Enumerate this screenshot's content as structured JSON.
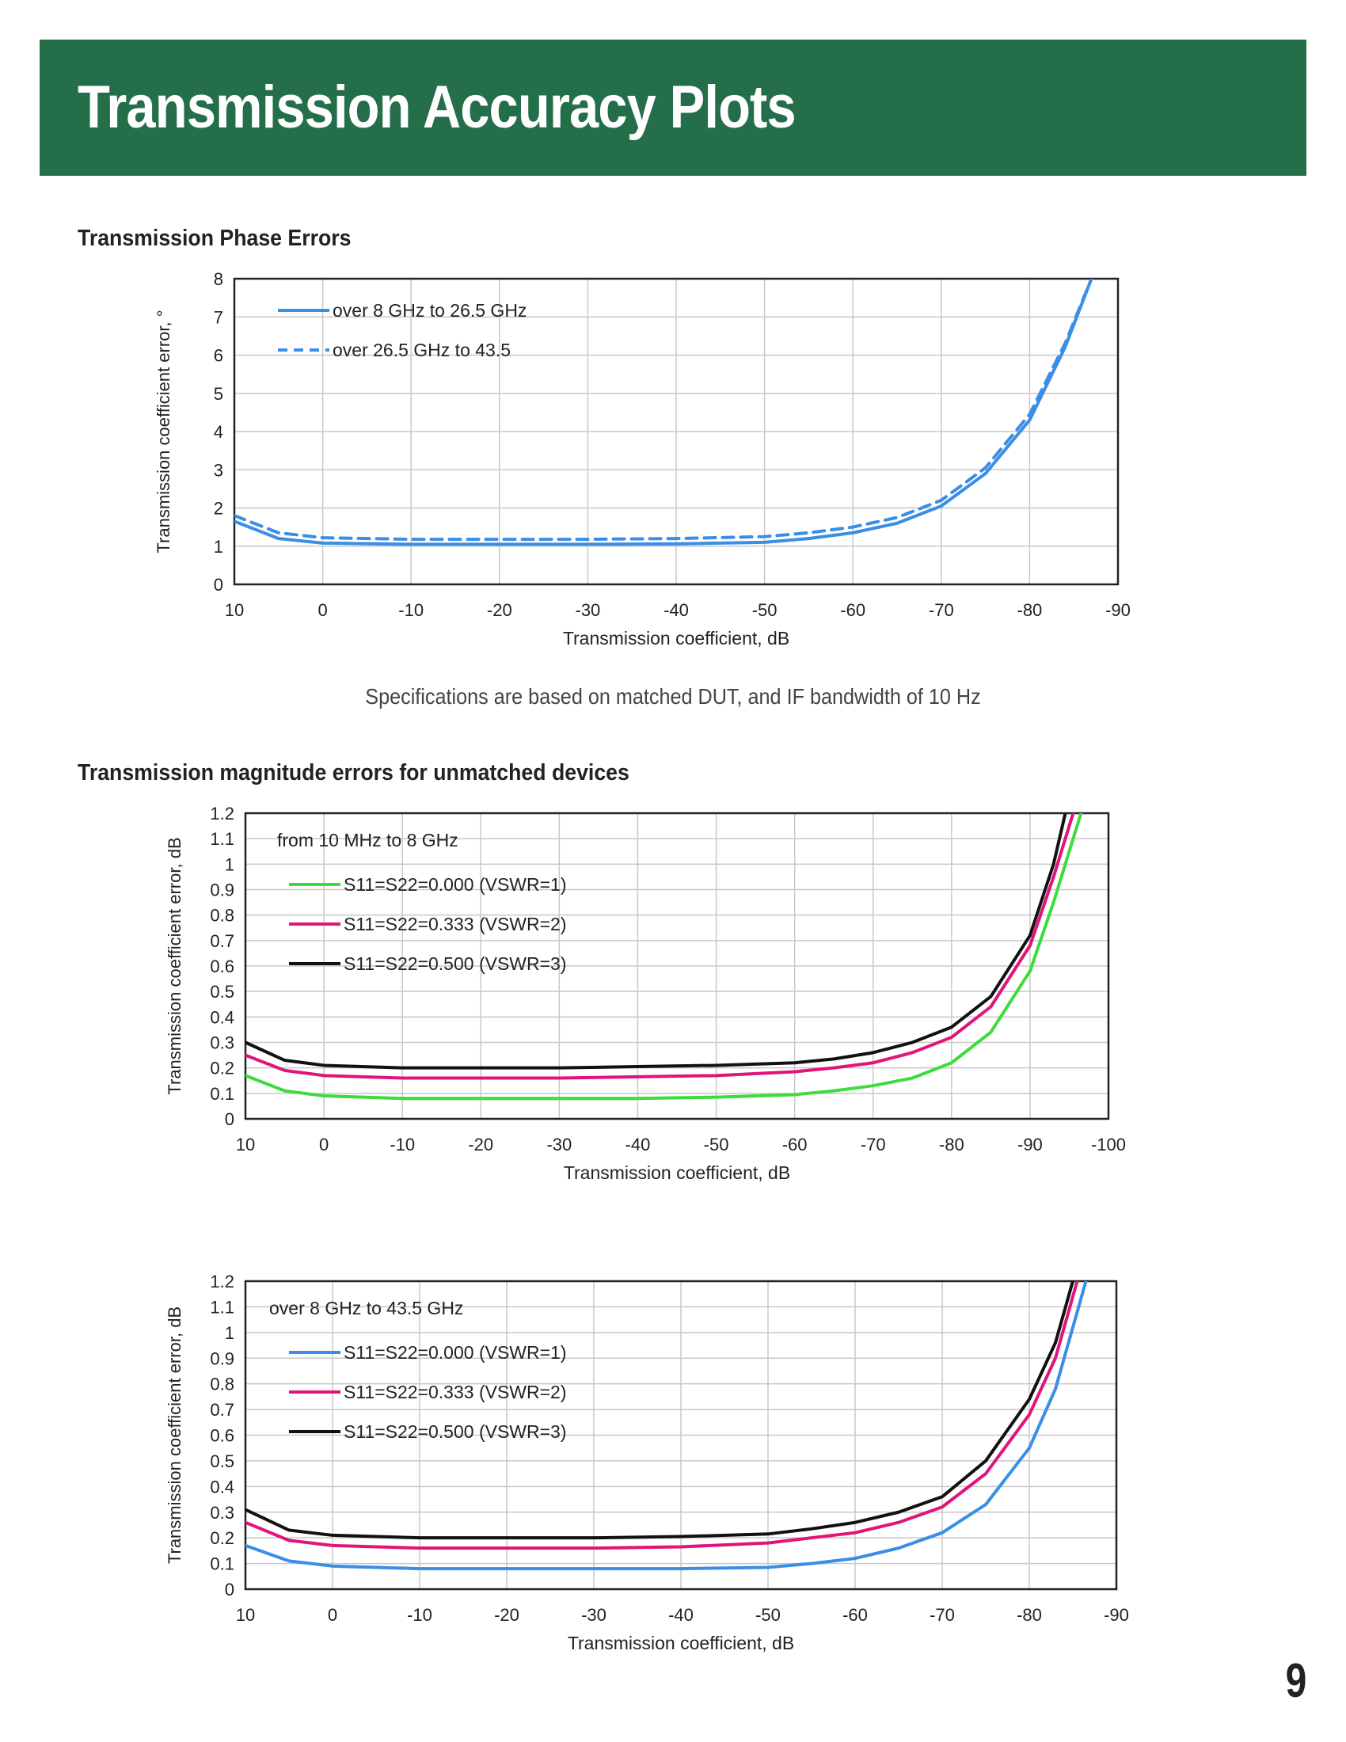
{
  "banner": {
    "title": "Transmission Accuracy Plots"
  },
  "sections": {
    "phase_heading": "Transmission Phase Errors",
    "magnitude_heading": "Transmission magnitude errors for unmatched devices"
  },
  "note": "Specifications are based on matched DUT, and IF bandwidth of 10 Hz",
  "page_number": "9",
  "chart_data": [
    {
      "type": "line",
      "ylabel": "Transmission coefficient error, °",
      "xlabel": "Transmission coefficient, dB",
      "xlim": [
        10,
        -90
      ],
      "ylim": [
        0,
        8
      ],
      "xticks": [
        10,
        0,
        -10,
        -20,
        -30,
        -40,
        -50,
        -60,
        -70,
        -80,
        -90
      ],
      "yticks": [
        0,
        1,
        2,
        3,
        4,
        5,
        6,
        7,
        8
      ],
      "ytick_labels": [
        "0",
        "1",
        "2",
        "3",
        "4",
        "5",
        "6",
        "7",
        "8"
      ],
      "grid": true,
      "legend_title": "",
      "legend_position": "top-left",
      "series": [
        {
          "name": "over 8 GHz to 26.5 GHz",
          "color": "#3a8ee6",
          "style": "solid",
          "x": [
            10,
            5,
            0,
            -10,
            -20,
            -30,
            -40,
            -50,
            -55,
            -60,
            -65,
            -70,
            -75,
            -80,
            -84,
            -87
          ],
          "y": [
            1.65,
            1.2,
            1.08,
            1.05,
            1.05,
            1.05,
            1.06,
            1.1,
            1.2,
            1.35,
            1.6,
            2.05,
            2.9,
            4.3,
            6.2,
            8.0
          ]
        },
        {
          "name": "over 26.5 GHz to 43.5",
          "color": "#3a8ee6",
          "style": "dashed",
          "x": [
            10,
            5,
            0,
            -10,
            -20,
            -30,
            -40,
            -50,
            -55,
            -60,
            -65,
            -70,
            -75,
            -80,
            -84,
            -87
          ],
          "y": [
            1.8,
            1.35,
            1.22,
            1.18,
            1.18,
            1.18,
            1.2,
            1.25,
            1.35,
            1.5,
            1.75,
            2.2,
            3.05,
            4.45,
            6.3,
            8.0
          ]
        }
      ]
    },
    {
      "type": "line",
      "ylabel": "Transmission coefficient error, dB",
      "xlabel": "Transmission coefficient, dB",
      "xlim": [
        10,
        -100
      ],
      "ylim": [
        0,
        1.2
      ],
      "xticks": [
        10,
        0,
        -10,
        -20,
        -30,
        -40,
        -50,
        -60,
        -70,
        -80,
        -90,
        -100
      ],
      "yticks": [
        0,
        0.1,
        0.2,
        0.3,
        0.4,
        0.5,
        0.6,
        0.7,
        0.8,
        0.9,
        1.0,
        1.1,
        1.2
      ],
      "ytick_labels": [
        "0",
        "0.1",
        "0.2",
        "0.3",
        "0.4",
        "0.5",
        "0.6",
        "0.7",
        "0.8",
        "0.9",
        "1",
        "1.1",
        "1.2"
      ],
      "grid": true,
      "legend_title": "from 10 MHz to 8 GHz",
      "legend_position": "top-left",
      "series": [
        {
          "name": "S11=S22=0.000 (VSWR=1)",
          "color": "#3ddc3d",
          "style": "solid",
          "x": [
            10,
            5,
            0,
            -10,
            -20,
            -30,
            -40,
            -50,
            -60,
            -65,
            -70,
            -75,
            -80,
            -85,
            -90,
            -93,
            -96.5
          ],
          "y": [
            0.17,
            0.11,
            0.09,
            0.08,
            0.08,
            0.08,
            0.08,
            0.085,
            0.095,
            0.11,
            0.13,
            0.16,
            0.22,
            0.34,
            0.58,
            0.85,
            1.2
          ]
        },
        {
          "name": "S11=S22=0.333 (VSWR=2)",
          "color": "#e0147a",
          "style": "solid",
          "x": [
            10,
            5,
            0,
            -10,
            -20,
            -30,
            -40,
            -50,
            -60,
            -65,
            -70,
            -75,
            -80,
            -85,
            -90,
            -93,
            -95.5
          ],
          "y": [
            0.25,
            0.19,
            0.17,
            0.16,
            0.16,
            0.16,
            0.165,
            0.17,
            0.185,
            0.2,
            0.22,
            0.26,
            0.32,
            0.44,
            0.68,
            0.95,
            1.2
          ]
        },
        {
          "name": "S11=S22=0.500 (VSWR=3)",
          "color": "#111111",
          "style": "solid",
          "x": [
            10,
            5,
            0,
            -10,
            -20,
            -30,
            -40,
            -50,
            -60,
            -65,
            -70,
            -75,
            -80,
            -85,
            -90,
            -93,
            -94.5
          ],
          "y": [
            0.3,
            0.23,
            0.21,
            0.2,
            0.2,
            0.2,
            0.205,
            0.21,
            0.22,
            0.235,
            0.26,
            0.3,
            0.36,
            0.48,
            0.72,
            1.0,
            1.2
          ]
        }
      ]
    },
    {
      "type": "line",
      "ylabel": "Transmission coefficient error, dB",
      "xlabel": "Transmission coefficient, dB",
      "xlim": [
        10,
        -90
      ],
      "ylim": [
        0,
        1.2
      ],
      "xticks": [
        10,
        0,
        -10,
        -20,
        -30,
        -40,
        -50,
        -60,
        -70,
        -80,
        -90
      ],
      "yticks": [
        0,
        0.1,
        0.2,
        0.3,
        0.4,
        0.5,
        0.6,
        0.7,
        0.8,
        0.9,
        1.0,
        1.1,
        1.2
      ],
      "ytick_labels": [
        "0",
        "0.1",
        "0.2",
        "0.3",
        "0.4",
        "0.5",
        "0.6",
        "0.7",
        "0.8",
        "0.9",
        "1",
        "1.1",
        "1.2"
      ],
      "grid": true,
      "legend_title": "over 8 GHz to 43.5 GHz",
      "legend_position": "top-left",
      "series": [
        {
          "name": "S11=S22=0.000 (VSWR=1)",
          "color": "#3a8ee6",
          "style": "solid",
          "x": [
            10,
            5,
            0,
            -10,
            -20,
            -30,
            -40,
            -50,
            -55,
            -60,
            -65,
            -70,
            -75,
            -80,
            -83,
            -86.5
          ],
          "y": [
            0.17,
            0.11,
            0.09,
            0.08,
            0.08,
            0.08,
            0.08,
            0.085,
            0.1,
            0.12,
            0.16,
            0.22,
            0.33,
            0.55,
            0.78,
            1.2
          ]
        },
        {
          "name": "S11=S22=0.333 (VSWR=2)",
          "color": "#e0147a",
          "style": "solid",
          "x": [
            10,
            5,
            0,
            -10,
            -20,
            -30,
            -40,
            -50,
            -55,
            -60,
            -65,
            -70,
            -75,
            -80,
            -83,
            -85.5
          ],
          "y": [
            0.26,
            0.19,
            0.17,
            0.16,
            0.16,
            0.16,
            0.165,
            0.18,
            0.2,
            0.22,
            0.26,
            0.32,
            0.45,
            0.68,
            0.9,
            1.2
          ]
        },
        {
          "name": "S11=S22=0.500 (VSWR=3)",
          "color": "#111111",
          "style": "solid",
          "x": [
            10,
            5,
            0,
            -10,
            -20,
            -30,
            -40,
            -50,
            -55,
            -60,
            -65,
            -70,
            -75,
            -80,
            -83,
            -85
          ],
          "y": [
            0.31,
            0.23,
            0.21,
            0.2,
            0.2,
            0.2,
            0.205,
            0.215,
            0.235,
            0.26,
            0.3,
            0.36,
            0.5,
            0.74,
            0.96,
            1.2
          ]
        }
      ]
    }
  ]
}
